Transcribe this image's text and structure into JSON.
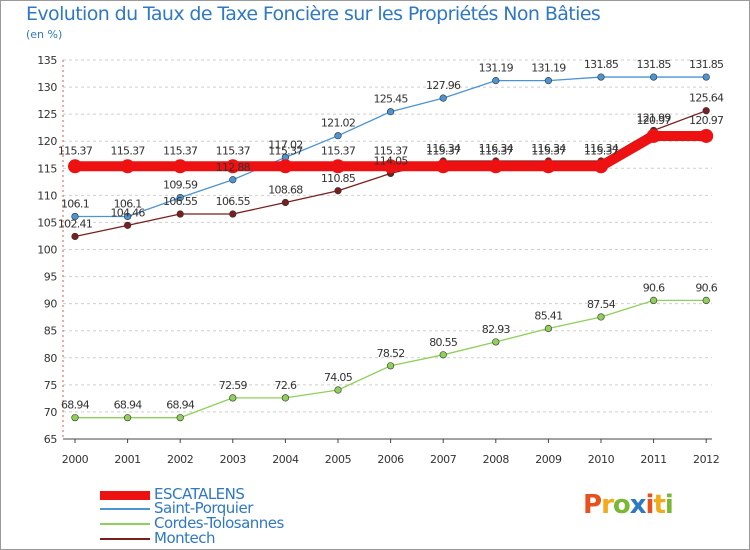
{
  "header": {
    "title": "Evolution du Taux de Taxe Foncière sur les Propriétés Non Bâties",
    "unit": "(en %)"
  },
  "logo": {
    "text": "Proxiti",
    "colors": [
      "#e8501e",
      "#f2a91a",
      "#7ab833",
      "#2f78c4",
      "#e8501e",
      "#f2a91a",
      "#7ab833"
    ]
  },
  "chart_data": {
    "type": "line",
    "title": "Evolution du Taux de Taxe Foncière sur les Propriétés Non Bâties",
    "ylabel": "(en %)",
    "xlabel": "",
    "x": [
      "2000",
      "2001",
      "2002",
      "2003",
      "2004",
      "2005",
      "2006",
      "2007",
      "2008",
      "2009",
      "2010",
      "2011",
      "2012"
    ],
    "ylim": [
      65,
      135
    ],
    "yticks": [
      65,
      70,
      75,
      80,
      85,
      90,
      95,
      100,
      105,
      110,
      115,
      120,
      125,
      130,
      135
    ],
    "grid": "dashed horizontal",
    "legend_position": "bottom-left",
    "series": [
      {
        "name": "ESCATALENS",
        "color": "#ee1111",
        "values": [
          115.37,
          115.37,
          115.37,
          115.37,
          115.37,
          115.37,
          115.37,
          115.37,
          115.37,
          115.37,
          115.37,
          120.97,
          120.97
        ],
        "labels": [
          "115.37",
          "115.37",
          "115.37",
          "115.37",
          "115.37",
          "115.37",
          "115.37",
          "115.37",
          "115.37",
          "115.37",
          "115.37",
          "120.97",
          "120.97"
        ]
      },
      {
        "name": "Saint-Porquier",
        "color": "#4c94d2",
        "values": [
          106.1,
          106.1,
          109.59,
          112.88,
          117.02,
          121.02,
          125.45,
          127.96,
          131.19,
          131.19,
          131.85,
          131.85,
          131.85
        ],
        "labels": [
          "106.1",
          "106.1",
          "109.59",
          "112.88",
          "117.02",
          "121.02",
          "125.45",
          "127.96",
          "131.19",
          "131.19",
          "131.85",
          "131.85",
          "131.85"
        ]
      },
      {
        "name": "Cordes-Tolosannes",
        "color": "#8fcf5a",
        "values": [
          68.94,
          68.94,
          68.94,
          72.59,
          72.6,
          74.05,
          78.52,
          80.55,
          82.93,
          85.41,
          87.54,
          90.6,
          90.6
        ],
        "labels": [
          "68.94",
          "68.94",
          "68.94",
          "72.59",
          "72.6",
          "74.05",
          "78.52",
          "80.55",
          "82.93",
          "85.41",
          "87.54",
          "90.6",
          "90.6"
        ]
      },
      {
        "name": "Montech",
        "color": "#7a1f1f",
        "values": [
          102.41,
          104.46,
          106.55,
          106.55,
          108.68,
          110.85,
          114.05,
          116.34,
          116.34,
          116.34,
          116.34,
          121.99,
          125.64
        ],
        "labels": [
          "102.41",
          "104.46",
          "106.55",
          "106.55",
          "108.68",
          "110.85",
          "114.05",
          "116.34",
          "116.34",
          "116.34",
          "116.34",
          "121.99",
          "125.64"
        ]
      }
    ]
  }
}
